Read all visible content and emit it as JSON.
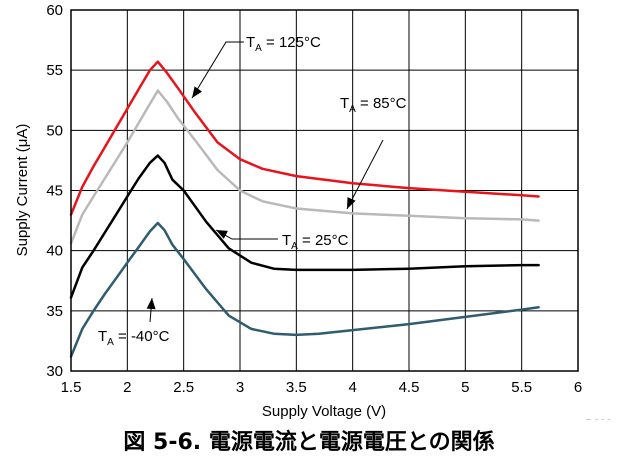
{
  "chart_data": {
    "type": "line",
    "xlabel": "Supply Voltage (V)",
    "ylabel": "Supply Current (μA)",
    "xlim": [
      1.5,
      6
    ],
    "ylim": [
      30,
      60
    ],
    "xticks": [
      "1.5",
      "2",
      "2.5",
      "3",
      "3.5",
      "4",
      "4.5",
      "5",
      "5.5",
      "6"
    ],
    "yticks": [
      "30",
      "35",
      "40",
      "45",
      "50",
      "55",
      "60"
    ],
    "grid": true,
    "legend": "none",
    "series": [
      {
        "color": "#e8141c",
        "annotation": {
          "pre": "T",
          "sub": "A",
          "post": " = 125°C"
        },
        "x": [
          1.5,
          1.6,
          1.7,
          1.8,
          1.9,
          2.0,
          2.1,
          2.2,
          2.27,
          2.35,
          2.45,
          2.6,
          2.8,
          3.0,
          3.2,
          3.5,
          4.0,
          4.5,
          5.0,
          5.5,
          5.65
        ],
        "y": [
          43.0,
          45.3,
          47.0,
          48.6,
          50.2,
          51.8,
          53.4,
          55.0,
          55.7,
          54.8,
          53.5,
          51.5,
          49.0,
          47.6,
          46.8,
          46.2,
          45.6,
          45.2,
          44.9,
          44.6,
          44.5
        ]
      },
      {
        "color": "#b9b9b9",
        "annotation": {
          "pre": "T",
          "sub": "A",
          "post": " = 85°C"
        },
        "x": [
          1.5,
          1.6,
          1.7,
          1.8,
          1.9,
          2.0,
          2.1,
          2.2,
          2.27,
          2.35,
          2.45,
          2.6,
          2.8,
          3.0,
          3.2,
          3.5,
          4.0,
          4.5,
          5.0,
          5.5,
          5.65
        ],
        "y": [
          40.6,
          43.0,
          44.5,
          46.0,
          47.5,
          49.0,
          50.6,
          52.2,
          53.3,
          52.4,
          51.0,
          49.2,
          46.7,
          45.0,
          44.1,
          43.5,
          43.1,
          42.9,
          42.7,
          42.6,
          42.5
        ]
      },
      {
        "color": "#000000",
        "annotation": {
          "pre": "T",
          "sub": "A",
          "post": " = 25°C"
        },
        "x": [
          1.5,
          1.6,
          1.7,
          1.8,
          1.9,
          2.0,
          2.1,
          2.2,
          2.27,
          2.33,
          2.4,
          2.5,
          2.7,
          2.9,
          3.1,
          3.3,
          3.5,
          4.0,
          4.5,
          5.0,
          5.5,
          5.65
        ],
        "y": [
          36.1,
          38.6,
          40.0,
          41.5,
          43.0,
          44.5,
          46.0,
          47.3,
          47.9,
          47.3,
          45.9,
          45.0,
          42.4,
          40.2,
          39.0,
          38.5,
          38.4,
          38.4,
          38.5,
          38.7,
          38.8,
          38.8
        ]
      },
      {
        "color": "#2f5c6e",
        "annotation": {
          "pre": "T",
          "sub": "A",
          "post": " = -40°C"
        },
        "x": [
          1.5,
          1.6,
          1.7,
          1.8,
          1.9,
          2.0,
          2.1,
          2.2,
          2.27,
          2.33,
          2.4,
          2.5,
          2.7,
          2.9,
          3.1,
          3.3,
          3.5,
          3.7,
          4.0,
          4.5,
          5.0,
          5.5,
          5.65
        ],
        "y": [
          31.2,
          33.5,
          35.0,
          36.4,
          37.7,
          39.0,
          40.3,
          41.6,
          42.3,
          41.7,
          40.5,
          39.3,
          36.8,
          34.6,
          33.5,
          33.1,
          33.0,
          33.1,
          33.4,
          33.9,
          34.5,
          35.1,
          35.3
        ]
      }
    ]
  },
  "figure_id": "D006",
  "caption": "図 5-6. 電源電流と電源電圧との関係"
}
